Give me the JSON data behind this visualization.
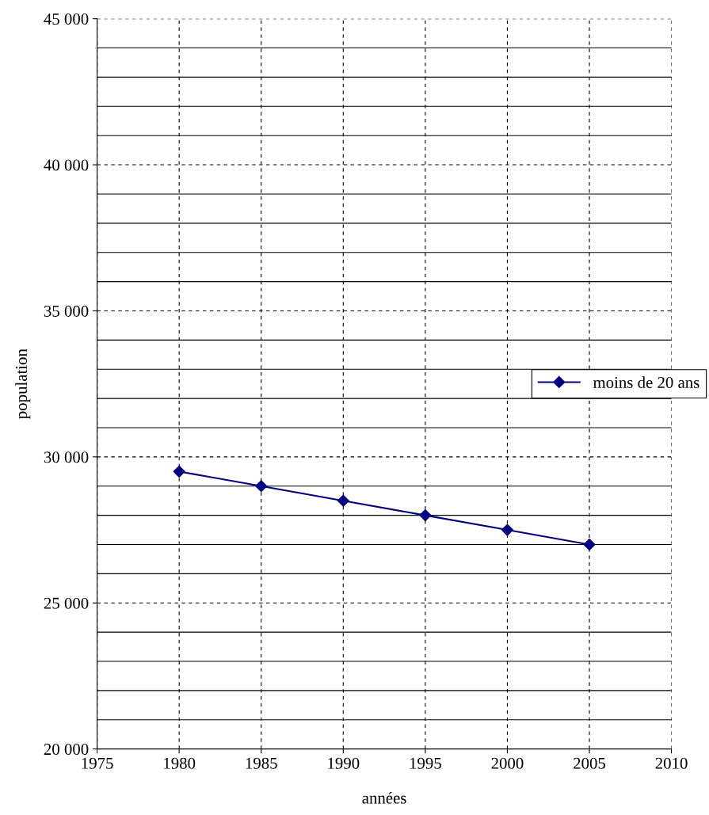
{
  "chart_data": {
    "type": "line",
    "xlabel": "années",
    "ylabel": "population",
    "x": [
      1980,
      1985,
      1990,
      1995,
      2000,
      2005
    ],
    "series": [
      {
        "name": "moins de 20 ans",
        "color": "#000080",
        "values": [
          29500,
          29000,
          28500,
          28000,
          27500,
          27000
        ]
      }
    ],
    "xlim": [
      1975,
      2010
    ],
    "xticks": [
      1975,
      1980,
      1985,
      1990,
      1995,
      2000,
      2005,
      2010
    ],
    "ylim": [
      20000,
      45000
    ],
    "yticks": [
      {
        "value": 20000,
        "label": "20 000"
      },
      {
        "value": 21000,
        "label": null
      },
      {
        "value": 22000,
        "label": null
      },
      {
        "value": 23000,
        "label": null
      },
      {
        "value": 24000,
        "label": null
      },
      {
        "value": 25000,
        "label": "25 000"
      },
      {
        "value": 26000,
        "label": null
      },
      {
        "value": 27000,
        "label": null
      },
      {
        "value": 28000,
        "label": null
      },
      {
        "value": 29000,
        "label": null
      },
      {
        "value": 30000,
        "label": "30 000"
      },
      {
        "value": 31000,
        "label": null
      },
      {
        "value": 32000,
        "label": null
      },
      {
        "value": 33000,
        "label": null
      },
      {
        "value": 34000,
        "label": null
      },
      {
        "value": 35000,
        "label": "35 000"
      },
      {
        "value": 36000,
        "label": null
      },
      {
        "value": 37000,
        "label": null
      },
      {
        "value": 38000,
        "label": null
      },
      {
        "value": 39000,
        "label": null
      },
      {
        "value": 40000,
        "label": "40 000"
      },
      {
        "value": 41000,
        "label": null
      },
      {
        "value": 42000,
        "label": null
      },
      {
        "value": 43000,
        "label": null
      },
      {
        "value": 44000,
        "label": null
      },
      {
        "value": 45000,
        "label": "45 000"
      }
    ],
    "grid": true,
    "legend": "right",
    "marker": "diamond",
    "line_style": "solid"
  }
}
